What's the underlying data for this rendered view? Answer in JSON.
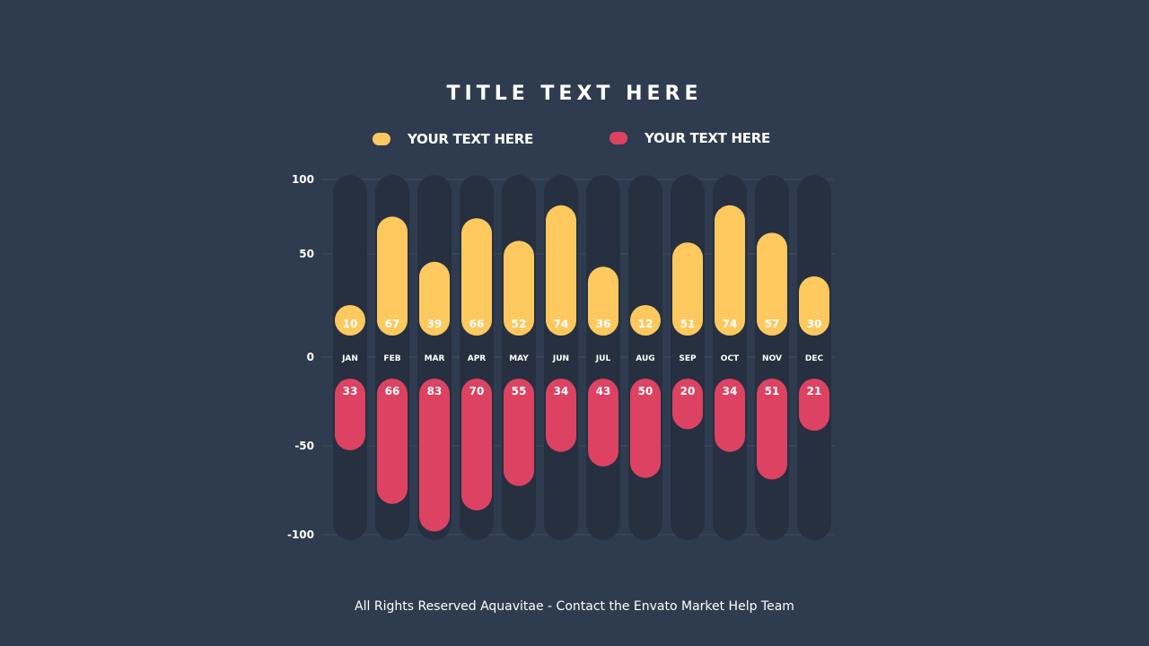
{
  "chart_data": {
    "type": "bar",
    "title": "TITLE TEXT HERE",
    "categories": [
      "JAN",
      "FEB",
      "MAR",
      "APR",
      "MAY",
      "JUN",
      "JUL",
      "AUG",
      "SEP",
      "OCT",
      "NOV",
      "DEC"
    ],
    "series": [
      {
        "name": "YOUR TEXT HERE",
        "color": "#fdc95f",
        "direction": "up",
        "values": [
          10,
          67,
          39,
          66,
          52,
          74,
          36,
          12,
          51,
          74,
          57,
          30
        ]
      },
      {
        "name": "YOUR TEXT HERE",
        "color": "#de4262",
        "direction": "down",
        "values": [
          33,
          66,
          83,
          70,
          55,
          34,
          43,
          50,
          20,
          34,
          51,
          21
        ]
      }
    ],
    "yticks": [
      100,
      50,
      0,
      -50,
      -100
    ],
    "ylim": [
      -100,
      100
    ],
    "grid": true,
    "legend": "top"
  },
  "colors": {
    "background": "#2f3c4f",
    "track": "#263040",
    "gridline": "#3e4b5e"
  },
  "footer": "All Rights Reserved Aquavitae - Contact the Envato Market Help Team"
}
